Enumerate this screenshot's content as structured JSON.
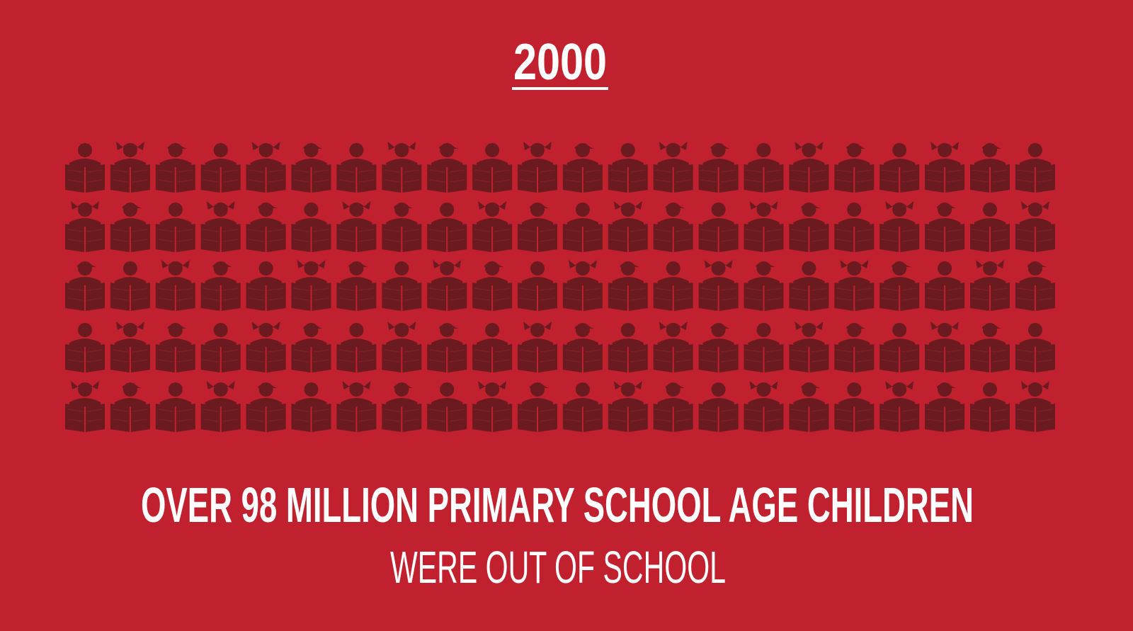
{
  "title": "2000",
  "headline": "OVER 98 MILLION PRIMARY SCHOOL AGE CHILDREN",
  "subline": "WERE OUT OF SCHOOL"
}
